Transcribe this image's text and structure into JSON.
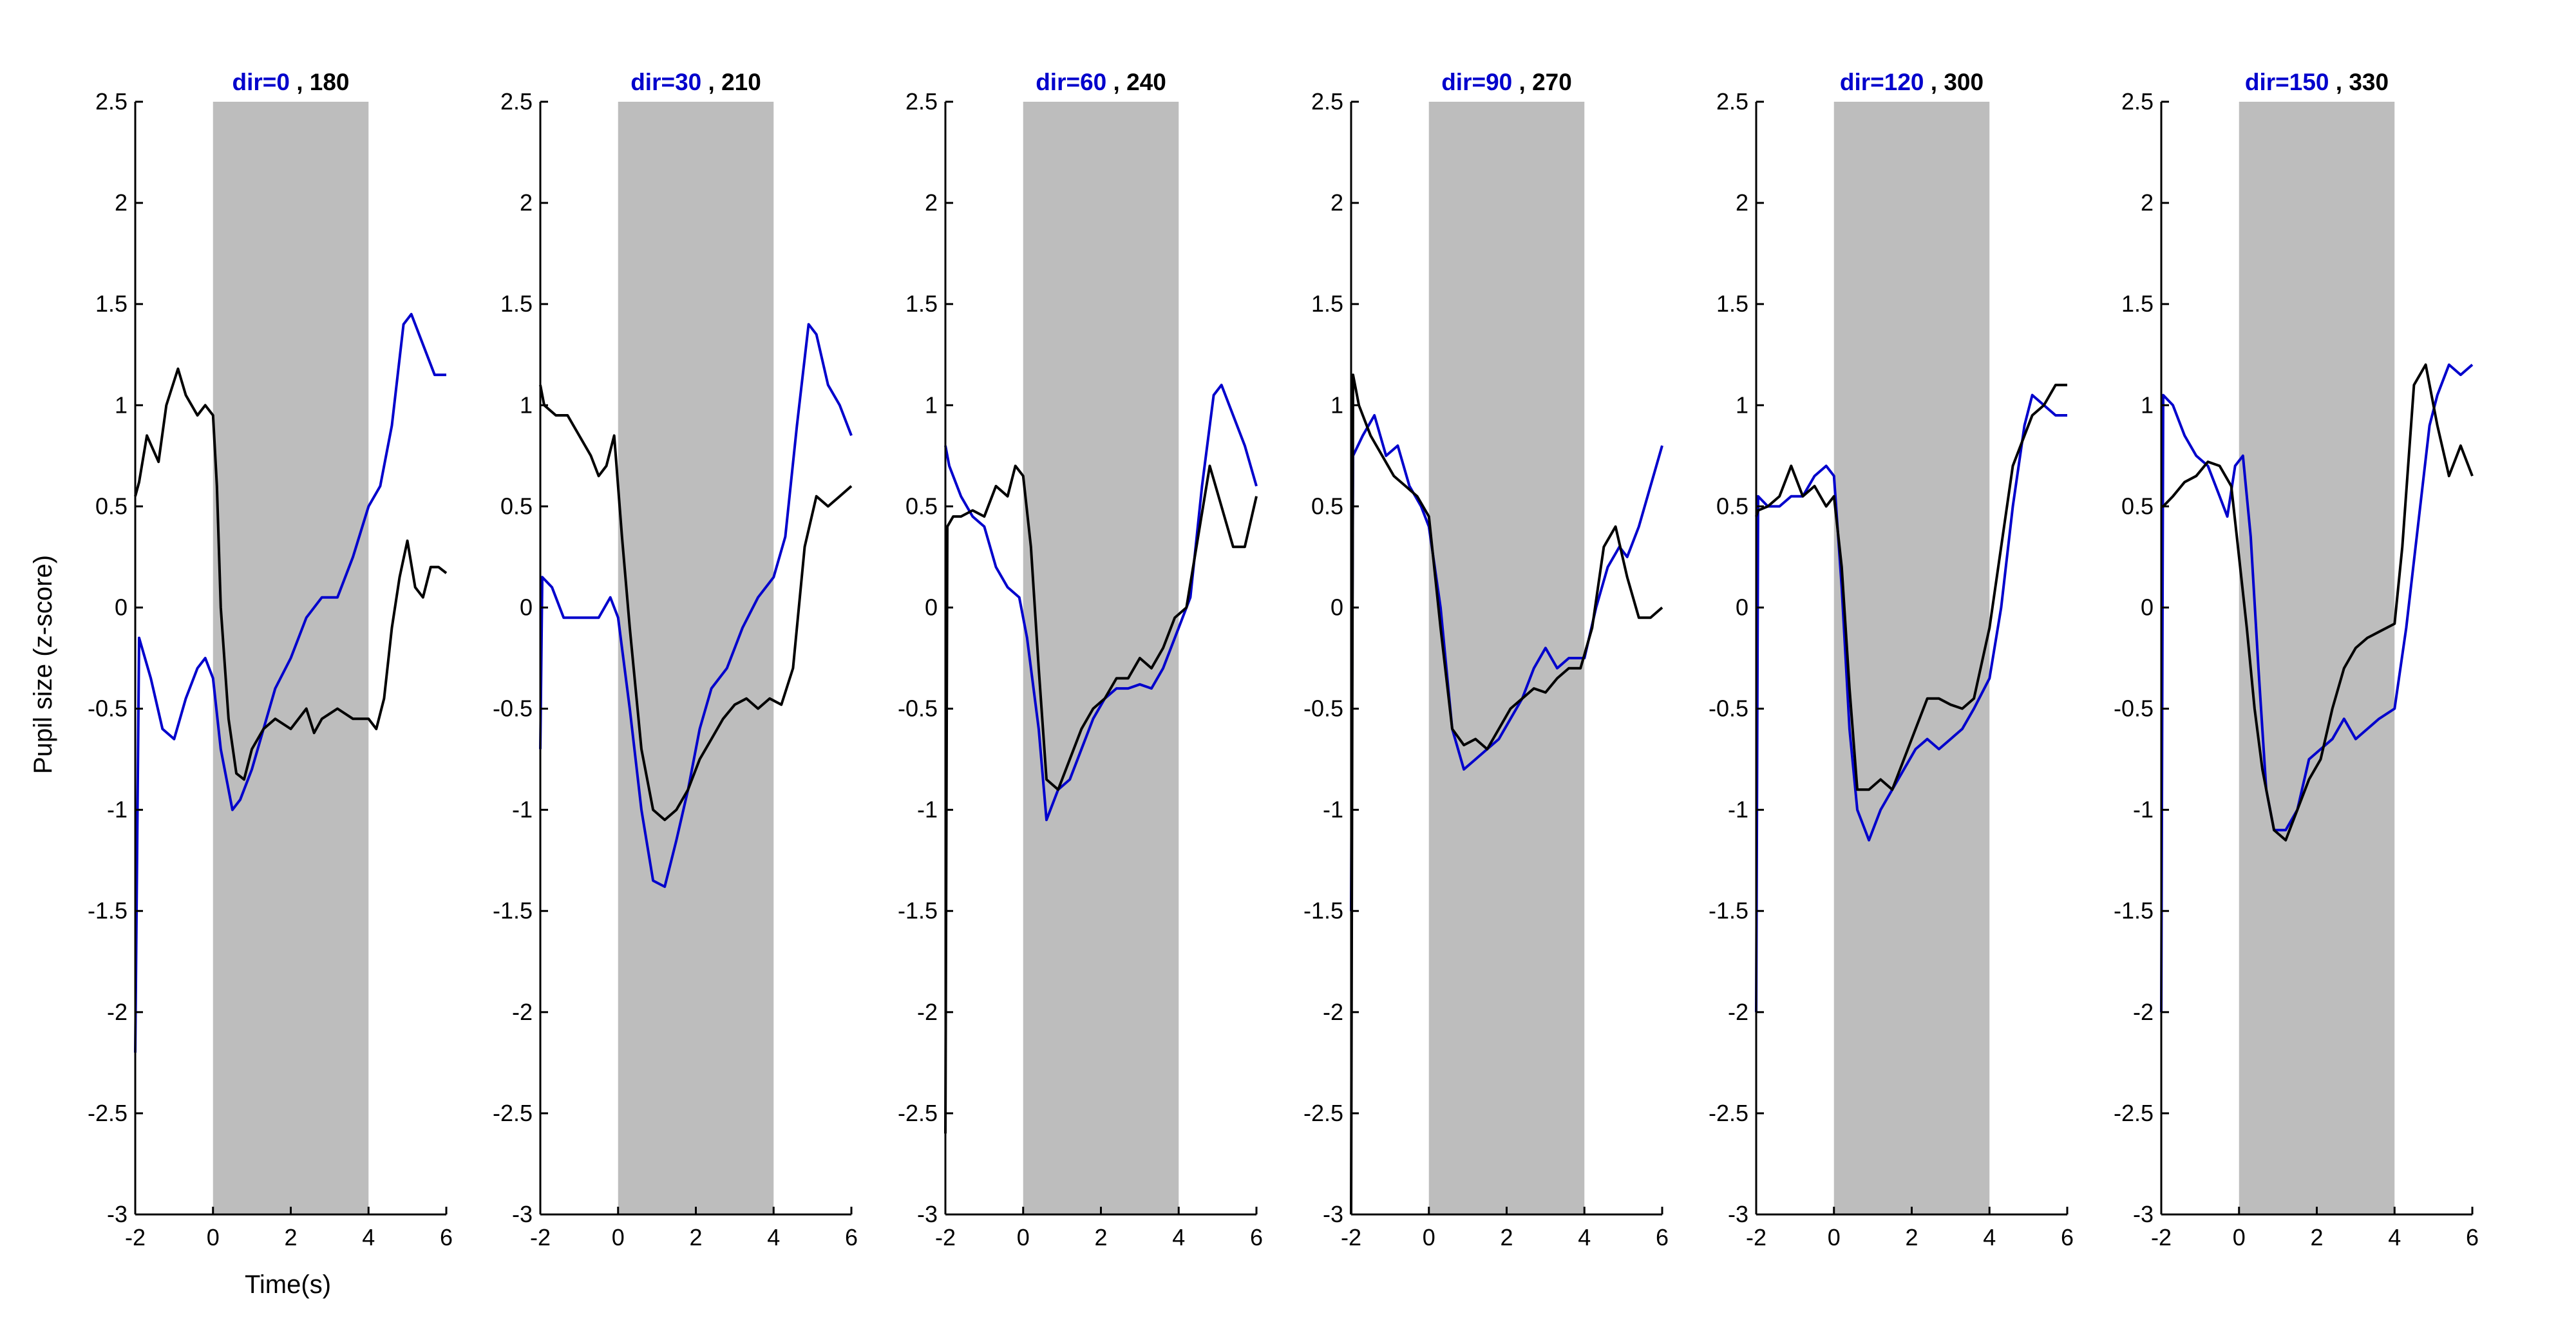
{
  "figure": {
    "ylabel": "Pupil size (z-score)",
    "xlabel": "Time(s)"
  },
  "chart_data": {
    "type": "line",
    "layout": "6 panels side by side, shared axes",
    "ylabel": "Pupil size (z-score)",
    "xlabel": "Time(s)",
    "xlim": [
      -2,
      6
    ],
    "ylim": [
      -3,
      2.5
    ],
    "xticks": [
      "-2",
      "0",
      "2",
      "4",
      "6"
    ],
    "yticks": [
      "2.5",
      "2",
      "1.5",
      "1",
      "0.5",
      "0",
      "-0.5",
      "-1",
      "-1.5",
      "-2",
      "-2.5",
      "-3"
    ],
    "shaded_interval": [
      0,
      4
    ],
    "colors": {
      "first_direction": "#0000cc",
      "second_direction": "#000000",
      "shade": "#bdbdbd"
    },
    "panels": [
      {
        "title_a": "dir=0",
        "title_sep": " , ",
        "title_b": "180",
        "series": [
          {
            "color": "#0000cc",
            "x": [
              -2,
              -1.9,
              -1.6,
              -1.3,
              -1,
              -0.7,
              -0.4,
              -0.2,
              0,
              0.2,
              0.5,
              0.7,
              1,
              1.3,
              1.6,
              2,
              2.4,
              2.8,
              3.2,
              3.6,
              4,
              4.3,
              4.6,
              4.9,
              5.1,
              5.4,
              5.7,
              6
            ],
            "y": [
              -2.2,
              -0.15,
              -0.35,
              -0.6,
              -0.65,
              -0.45,
              -0.3,
              -0.25,
              -0.35,
              -0.7,
              -1.0,
              -0.95,
              -0.8,
              -0.6,
              -0.4,
              -0.25,
              -0.05,
              0.05,
              0.05,
              0.25,
              0.5,
              0.6,
              0.9,
              1.4,
              1.45,
              1.3,
              1.15,
              1.15
            ]
          },
          {
            "color": "#000000",
            "x": [
              -2,
              -1.9,
              -1.7,
              -1.4,
              -1.2,
              -0.9,
              -0.7,
              -0.4,
              -0.2,
              0,
              0.1,
              0.2,
              0.4,
              0.6,
              0.8,
              1,
              1.3,
              1.6,
              2,
              2.4,
              2.6,
              2.8,
              3.2,
              3.6,
              4,
              4.2,
              4.4,
              4.6,
              4.8,
              5,
              5.2,
              5.4,
              5.6,
              5.8,
              6
            ],
            "y": [
              0.55,
              0.62,
              0.85,
              0.72,
              1.0,
              1.18,
              1.05,
              0.95,
              1.0,
              0.95,
              0.6,
              0.0,
              -0.55,
              -0.82,
              -0.85,
              -0.7,
              -0.6,
              -0.55,
              -0.6,
              -0.5,
              -0.62,
              -0.55,
              -0.5,
              -0.55,
              -0.55,
              -0.6,
              -0.45,
              -0.1,
              0.15,
              0.33,
              0.1,
              0.05,
              0.2,
              0.2,
              0.17
            ]
          }
        ]
      },
      {
        "title_a": "dir=30",
        "title_sep": " , ",
        "title_b": "210",
        "series": [
          {
            "color": "#0000cc",
            "x": [
              -2,
              -1.95,
              -1.7,
              -1.4,
              -1.1,
              -0.8,
              -0.5,
              -0.2,
              0,
              0.3,
              0.6,
              0.9,
              1.2,
              1.5,
              1.8,
              2.1,
              2.4,
              2.8,
              3.2,
              3.6,
              4,
              4.3,
              4.6,
              4.9,
              5.1,
              5.4,
              5.7,
              6
            ],
            "y": [
              -0.7,
              0.15,
              0.1,
              -0.05,
              -0.05,
              -0.05,
              -0.05,
              0.05,
              -0.05,
              -0.5,
              -1.0,
              -1.35,
              -1.38,
              -1.15,
              -0.9,
              -0.6,
              -0.4,
              -0.3,
              -0.1,
              0.05,
              0.15,
              0.35,
              0.9,
              1.4,
              1.35,
              1.1,
              1.0,
              0.85
            ]
          },
          {
            "color": "#000000",
            "x": [
              -2,
              -1.9,
              -1.6,
              -1.3,
              -1,
              -0.7,
              -0.5,
              -0.3,
              -0.1,
              0.1,
              0.3,
              0.6,
              0.9,
              1.2,
              1.5,
              1.8,
              2.1,
              2.4,
              2.7,
              3.0,
              3.3,
              3.6,
              3.9,
              4.2,
              4.5,
              4.8,
              5.1,
              5.4,
              5.7,
              6
            ],
            "y": [
              1.1,
              1.0,
              0.95,
              0.95,
              0.85,
              0.75,
              0.65,
              0.7,
              0.85,
              0.35,
              -0.1,
              -0.7,
              -1.0,
              -1.05,
              -1.0,
              -0.9,
              -0.75,
              -0.65,
              -0.55,
              -0.48,
              -0.45,
              -0.5,
              -0.45,
              -0.48,
              -0.3,
              0.3,
              0.55,
              0.5,
              0.55,
              0.6
            ]
          }
        ]
      },
      {
        "title_a": "dir=60",
        "title_sep": " , ",
        "title_b": "240",
        "series": [
          {
            "color": "#0000cc",
            "x": [
              -2,
              -1.9,
              -1.6,
              -1.3,
              -1,
              -0.7,
              -0.4,
              -0.1,
              0.1,
              0.4,
              0.6,
              0.9,
              1.2,
              1.5,
              1.8,
              2.1,
              2.4,
              2.7,
              3,
              3.3,
              3.6,
              4,
              4.3,
              4.6,
              4.9,
              5.1,
              5.4,
              5.7,
              6
            ],
            "y": [
              0.8,
              0.7,
              0.55,
              0.45,
              0.4,
              0.2,
              0.1,
              0.05,
              -0.15,
              -0.6,
              -1.05,
              -0.9,
              -0.85,
              -0.7,
              -0.55,
              -0.45,
              -0.4,
              -0.4,
              -0.38,
              -0.4,
              -0.3,
              -0.1,
              0.05,
              0.6,
              1.05,
              1.1,
              0.95,
              0.8,
              0.6
            ]
          },
          {
            "color": "#000000",
            "x": [
              -2,
              -1.95,
              -1.8,
              -1.6,
              -1.3,
              -1,
              -0.7,
              -0.4,
              -0.2,
              0,
              0.2,
              0.4,
              0.6,
              0.9,
              1.2,
              1.5,
              1.8,
              2.1,
              2.4,
              2.7,
              3,
              3.3,
              3.6,
              3.9,
              4.2,
              4.5,
              4.8,
              5.1,
              5.4,
              5.7,
              6
            ],
            "y": [
              -2.6,
              0.4,
              0.45,
              0.45,
              0.48,
              0.45,
              0.6,
              0.55,
              0.7,
              0.65,
              0.3,
              -0.3,
              -0.85,
              -0.9,
              -0.75,
              -0.6,
              -0.5,
              -0.45,
              -0.35,
              -0.35,
              -0.25,
              -0.3,
              -0.2,
              -0.05,
              0.0,
              0.35,
              0.7,
              0.5,
              0.3,
              0.3,
              0.55
            ]
          }
        ]
      },
      {
        "title_a": "dir=90",
        "title_sep": " , ",
        "title_b": "270",
        "series": [
          {
            "color": "#0000cc",
            "x": [
              -2,
              -1.95,
              -1.7,
              -1.4,
              -1.1,
              -0.8,
              -0.5,
              -0.2,
              0,
              0.3,
              0.6,
              0.9,
              1.2,
              1.5,
              1.8,
              2.1,
              2.4,
              2.7,
              3,
              3.3,
              3.6,
              4,
              4.3,
              4.6,
              4.9,
              5.1,
              5.4,
              5.7,
              6
            ],
            "y": [
              -1.5,
              0.75,
              0.85,
              0.95,
              0.75,
              0.8,
              0.6,
              0.5,
              0.4,
              0.0,
              -0.6,
              -0.8,
              -0.75,
              -0.7,
              -0.65,
              -0.55,
              -0.45,
              -0.3,
              -0.2,
              -0.3,
              -0.25,
              -0.25,
              0.0,
              0.2,
              0.3,
              0.25,
              0.4,
              0.6,
              0.8
            ]
          },
          {
            "color": "#000000",
            "x": [
              -2,
              -1.95,
              -1.8,
              -1.5,
              -1.2,
              -0.9,
              -0.6,
              -0.3,
              0,
              0.3,
              0.6,
              0.9,
              1.2,
              1.5,
              1.8,
              2.1,
              2.4,
              2.7,
              3,
              3.3,
              3.6,
              3.9,
              4.2,
              4.5,
              4.8,
              5.1,
              5.4,
              5.7,
              6
            ],
            "y": [
              -3,
              1.15,
              1.0,
              0.85,
              0.75,
              0.65,
              0.6,
              0.55,
              0.45,
              -0.1,
              -0.6,
              -0.68,
              -0.65,
              -0.7,
              -0.6,
              -0.5,
              -0.45,
              -0.4,
              -0.42,
              -0.35,
              -0.3,
              -0.3,
              -0.1,
              0.3,
              0.4,
              0.15,
              -0.05,
              -0.05,
              0.0
            ]
          }
        ]
      },
      {
        "title_a": "dir=120",
        "title_sep": " , ",
        "title_b": "300",
        "series": [
          {
            "color": "#0000cc",
            "x": [
              -2,
              -1.95,
              -1.7,
              -1.4,
              -1.1,
              -0.8,
              -0.5,
              -0.2,
              0,
              0.2,
              0.4,
              0.6,
              0.9,
              1.2,
              1.5,
              1.8,
              2.1,
              2.4,
              2.7,
              3,
              3.3,
              3.6,
              4,
              4.3,
              4.6,
              4.9,
              5.1,
              5.4,
              5.7,
              6
            ],
            "y": [
              -2.0,
              0.55,
              0.5,
              0.5,
              0.55,
              0.55,
              0.65,
              0.7,
              0.65,
              0.1,
              -0.6,
              -1.0,
              -1.15,
              -1.0,
              -0.9,
              -0.8,
              -0.7,
              -0.65,
              -0.7,
              -0.65,
              -0.6,
              -0.5,
              -0.35,
              0.0,
              0.5,
              0.9,
              1.05,
              1.0,
              0.95,
              0.95
            ]
          },
          {
            "color": "#000000",
            "x": [
              -2,
              -1.95,
              -1.7,
              -1.4,
              -1.1,
              -0.8,
              -0.5,
              -0.2,
              0,
              0.2,
              0.4,
              0.6,
              0.9,
              1.2,
              1.5,
              1.8,
              2.1,
              2.4,
              2.7,
              3,
              3.3,
              3.6,
              4,
              4.3,
              4.6,
              4.9,
              5.1,
              5.4,
              5.7,
              6
            ],
            "y": [
              0.45,
              0.48,
              0.5,
              0.55,
              0.7,
              0.55,
              0.6,
              0.5,
              0.55,
              0.2,
              -0.4,
              -0.9,
              -0.9,
              -0.85,
              -0.9,
              -0.75,
              -0.6,
              -0.45,
              -0.45,
              -0.48,
              -0.5,
              -0.45,
              -0.1,
              0.3,
              0.7,
              0.85,
              0.95,
              1.0,
              1.1,
              1.1
            ]
          }
        ]
      },
      {
        "title_a": "dir=150",
        "title_sep": " , ",
        "title_b": "330",
        "series": [
          {
            "color": "#0000cc",
            "x": [
              -2,
              -1.95,
              -1.7,
              -1.4,
              -1.1,
              -0.8,
              -0.5,
              -0.3,
              -0.1,
              0.1,
              0.3,
              0.5,
              0.7,
              0.9,
              1.2,
              1.5,
              1.8,
              2.1,
              2.4,
              2.7,
              3,
              3.3,
              3.6,
              4,
              4.3,
              4.6,
              4.9,
              5.1,
              5.4,
              5.7,
              6
            ],
            "y": [
              -2.0,
              1.05,
              1.0,
              0.85,
              0.75,
              0.7,
              0.55,
              0.45,
              0.7,
              0.75,
              0.35,
              -0.3,
              -0.9,
              -1.1,
              -1.1,
              -1.0,
              -0.75,
              -0.7,
              -0.65,
              -0.55,
              -0.65,
              -0.6,
              -0.55,
              -0.5,
              -0.1,
              0.4,
              0.9,
              1.05,
              1.2,
              1.15,
              1.2
            ]
          },
          {
            "color": "#000000",
            "x": [
              -2,
              -1.95,
              -1.7,
              -1.4,
              -1.1,
              -0.8,
              -0.5,
              -0.2,
              0,
              0.2,
              0.4,
              0.6,
              0.9,
              1.2,
              1.5,
              1.8,
              2.1,
              2.4,
              2.7,
              3,
              3.3,
              3.6,
              4,
              4.2,
              4.5,
              4.8,
              5.1,
              5.4,
              5.7,
              6
            ],
            "y": [
              0.5,
              0.5,
              0.55,
              0.62,
              0.65,
              0.72,
              0.7,
              0.6,
              0.25,
              -0.1,
              -0.5,
              -0.8,
              -1.1,
              -1.15,
              -1.0,
              -0.85,
              -0.75,
              -0.5,
              -0.3,
              -0.2,
              -0.15,
              -0.12,
              -0.08,
              0.3,
              1.1,
              1.2,
              0.9,
              0.65,
              0.8,
              0.65
            ]
          }
        ]
      }
    ]
  }
}
